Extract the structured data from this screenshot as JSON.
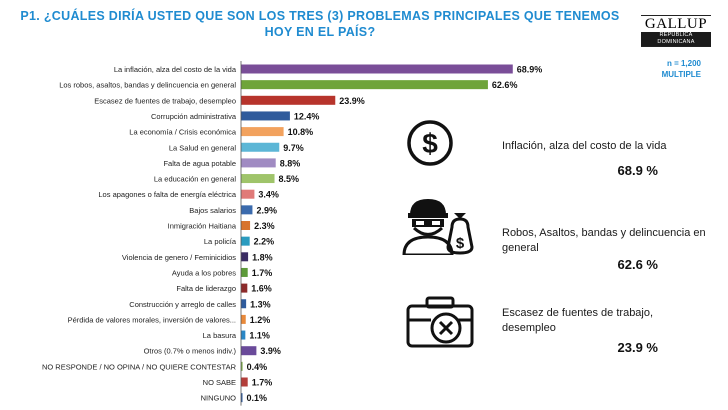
{
  "header": {
    "title": "P1. ¿CUÁLES DIRÍA USTED QUE SON LOS TRES (3) PROBLEMAS PRINCIPALES QUE TENEMOS HOY EN EL PAÍS?",
    "logo_name": "GALLUP",
    "logo_sub": "REPÚBLICA DOMINICANA",
    "sample_n": "n = 1,200",
    "sample_type": "MULTIPLE"
  },
  "chart_data": {
    "type": "bar",
    "orientation": "horizontal",
    "unit": "%",
    "xlim": [
      0,
      72
    ],
    "grid": false,
    "categories": [
      "La inflación, alza del costo de la vida",
      "Los robos, asaltos, bandas y delincuencia en general",
      "Escasez de fuentes de trabajo, desempleo",
      "Corrupción administrativa",
      "La economía / Crisis económica",
      "La Salud en general",
      "Falta de agua potable",
      "La educación en general",
      "Los apagones o falta de energía eléctrica",
      "Bajos salarios",
      "Inmigración Haitiana",
      "La policía",
      "Violencia de genero / Feminicidios",
      "Ayuda a los pobres",
      "Falta de liderazgo",
      "Construcción y arreglo de calles",
      "Pérdida de valores morales, inversión de valores...",
      "La basura",
      "Otros (0.7% o menos indiv.)",
      "NO RESPONDE / NO OPINA / NO QUIERE CONTESTAR",
      "NO SABE",
      "NINGUNO"
    ],
    "values": [
      68.9,
      62.6,
      23.9,
      12.4,
      10.8,
      9.7,
      8.8,
      8.5,
      3.4,
      2.9,
      2.3,
      2.2,
      1.8,
      1.7,
      1.6,
      1.3,
      1.2,
      1.1,
      3.9,
      0.4,
      1.7,
      0.1
    ],
    "value_labels": [
      "68.9%",
      "62.6%",
      "23.9%",
      "12.4%",
      "10.8%",
      "9.7%",
      "8.8%",
      "8.5%",
      "3.4%",
      "2.9%",
      "2.3%",
      "2.2%",
      "1.8%",
      "1.7%",
      "1.6%",
      "1.3%",
      "1.2%",
      "1.1%",
      "3.9%",
      "0.4%",
      "1.7%",
      "0.1%"
    ],
    "colors": [
      "#7a4e98",
      "#6fa43a",
      "#b7342c",
      "#2f5b9c",
      "#f2a25e",
      "#5cb6d6",
      "#a08bc2",
      "#9fc46a",
      "#e07a78",
      "#3a6aad",
      "#d8742e",
      "#2a9bbf",
      "#3a2c63",
      "#5d9a3a",
      "#8c2a2a",
      "#2f5b9c",
      "#e8893a",
      "#2a87c6",
      "#6a4a9a",
      "#7dab4a",
      "#b33e3a",
      "#2f5b9c"
    ]
  },
  "highlights": [
    {
      "caption": "Inflación, alza del costo de la vida",
      "value": "68.9 %",
      "icon": "dollar-icon"
    },
    {
      "caption": "Robos, Asaltos, bandas y delincuencia en general",
      "value": "62.6 %",
      "icon": "robber-icon"
    },
    {
      "caption": "Escasez de fuentes de trabajo, desempleo",
      "value": "23.9 %",
      "icon": "briefcase-x-icon"
    }
  ]
}
